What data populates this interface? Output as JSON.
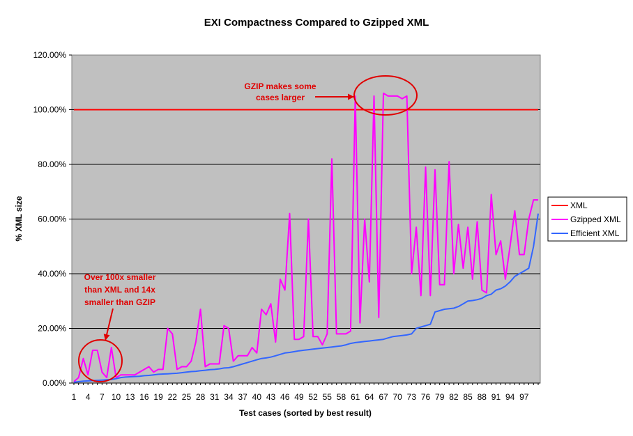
{
  "chart_data": {
    "type": "line",
    "title": "EXI Compactness Compared to Gzipped XML",
    "xlabel": "Test cases (sorted by best result)",
    "ylabel": "% XML size",
    "ylim": [
      0,
      1.2
    ],
    "y_ticks": [
      {
        "value": 0.0,
        "label": "0.00%"
      },
      {
        "value": 0.2,
        "label": "20.00%"
      },
      {
        "value": 0.4,
        "label": "40.00%"
      },
      {
        "value": 0.6,
        "label": "60.00%"
      },
      {
        "value": 0.8,
        "label": "80.00%"
      },
      {
        "value": 1.0,
        "label": "100.00%"
      },
      {
        "value": 1.2,
        "label": "120.00%"
      }
    ],
    "x_count": 100,
    "x_tick_labels": [
      "1",
      "4",
      "7",
      "10",
      "13",
      "16",
      "19",
      "22",
      "25",
      "28",
      "31",
      "34",
      "37",
      "40",
      "43",
      "46",
      "49",
      "52",
      "55",
      "58",
      "61",
      "64",
      "67",
      "70",
      "73",
      "76",
      "79",
      "82",
      "85",
      "88",
      "91",
      "94",
      "97"
    ],
    "grid": true,
    "legend_position": "right",
    "series": [
      {
        "name": "XML",
        "color": "#ff0000",
        "values": [
          1,
          1,
          1,
          1,
          1,
          1,
          1,
          1,
          1,
          1,
          1,
          1,
          1,
          1,
          1,
          1,
          1,
          1,
          1,
          1,
          1,
          1,
          1,
          1,
          1,
          1,
          1,
          1,
          1,
          1,
          1,
          1,
          1,
          1,
          1,
          1,
          1,
          1,
          1,
          1,
          1,
          1,
          1,
          1,
          1,
          1,
          1,
          1,
          1,
          1,
          1,
          1,
          1,
          1,
          1,
          1,
          1,
          1,
          1,
          1,
          1,
          1,
          1,
          1,
          1,
          1,
          1,
          1,
          1,
          1,
          1,
          1,
          1,
          1,
          1,
          1,
          1,
          1,
          1,
          1,
          1,
          1,
          1,
          1,
          1,
          1,
          1,
          1,
          1,
          1,
          1,
          1,
          1,
          1,
          1,
          1,
          1,
          1,
          1,
          1
        ]
      },
      {
        "name": "Gzipped XML",
        "color": "#ff00ff",
        "values": [
          0.005,
          0.02,
          0.09,
          0.03,
          0.12,
          0.12,
          0.04,
          0.02,
          0.13,
          0.02,
          0.03,
          0.03,
          0.03,
          0.03,
          0.04,
          0.05,
          0.06,
          0.04,
          0.05,
          0.05,
          0.2,
          0.18,
          0.05,
          0.06,
          0.06,
          0.08,
          0.15,
          0.27,
          0.06,
          0.07,
          0.07,
          0.07,
          0.21,
          0.2,
          0.08,
          0.1,
          0.1,
          0.1,
          0.13,
          0.11,
          0.27,
          0.25,
          0.29,
          0.15,
          0.38,
          0.34,
          0.62,
          0.16,
          0.16,
          0.17,
          0.6,
          0.17,
          0.17,
          0.14,
          0.18,
          0.82,
          0.18,
          0.18,
          0.18,
          0.19,
          1.05,
          0.22,
          0.6,
          0.37,
          1.05,
          0.24,
          1.06,
          1.05,
          1.05,
          1.05,
          1.04,
          1.05,
          0.4,
          0.57,
          0.32,
          0.79,
          0.32,
          0.78,
          0.36,
          0.36,
          0.81,
          0.4,
          0.58,
          0.42,
          0.57,
          0.38,
          0.59,
          0.34,
          0.33,
          0.69,
          0.47,
          0.52,
          0.38,
          0.5,
          0.63,
          0.47,
          0.47,
          0.6,
          0.67,
          0.67
        ]
      },
      {
        "name": "Efficient XML",
        "color": "#3366ff",
        "values": [
          0.003,
          0.005,
          0.007,
          0.008,
          0.009,
          0.01,
          0.011,
          0.012,
          0.013,
          0.016,
          0.02,
          0.022,
          0.023,
          0.024,
          0.025,
          0.027,
          0.028,
          0.03,
          0.032,
          0.033,
          0.034,
          0.035,
          0.036,
          0.038,
          0.04,
          0.042,
          0.043,
          0.045,
          0.047,
          0.049,
          0.05,
          0.052,
          0.055,
          0.056,
          0.06,
          0.065,
          0.07,
          0.075,
          0.08,
          0.085,
          0.09,
          0.092,
          0.095,
          0.1,
          0.105,
          0.11,
          0.112,
          0.115,
          0.118,
          0.12,
          0.122,
          0.124,
          0.126,
          0.128,
          0.13,
          0.132,
          0.134,
          0.136,
          0.14,
          0.145,
          0.148,
          0.15,
          0.152,
          0.154,
          0.156,
          0.158,
          0.16,
          0.165,
          0.17,
          0.172,
          0.174,
          0.176,
          0.18,
          0.2,
          0.205,
          0.21,
          0.215,
          0.26,
          0.265,
          0.27,
          0.272,
          0.274,
          0.28,
          0.29,
          0.3,
          0.302,
          0.305,
          0.31,
          0.32,
          0.325,
          0.34,
          0.345,
          0.355,
          0.37,
          0.39,
          0.4,
          0.41,
          0.42,
          0.5,
          0.62
        ]
      }
    ],
    "annotations": [
      {
        "id": "gzip-larger",
        "lines": [
          "GZIP makes some",
          "cases larger"
        ],
        "target_index": 66,
        "target_value": 1.05
      },
      {
        "id": "over-100x",
        "lines": [
          "Over 100x smaller",
          "than XML and 14x",
          "smaller than GZIP"
        ],
        "target_index": 6,
        "target_value": 0.08
      }
    ]
  }
}
